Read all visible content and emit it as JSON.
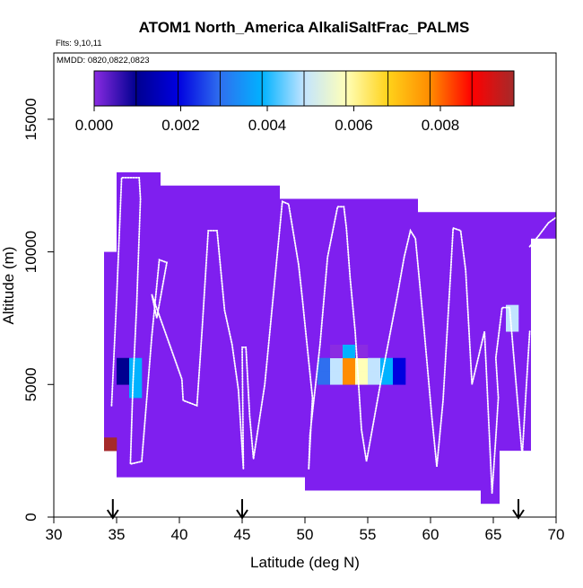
{
  "chart_data": {
    "type": "heatmap",
    "title": "ATOM1 North_America AlkaliSaltFrac_PALMS",
    "flights_label": "Flts: 9,10,11",
    "dates_label": "MMDD: 0820,0822,0823",
    "xlabel": "Latitude (deg N)",
    "ylabel": "Altitude (m)",
    "xlim": [
      30,
      70
    ],
    "ylim": [
      0,
      17500
    ],
    "x_ticks": [
      30,
      35,
      40,
      45,
      50,
      55,
      60,
      65,
      70
    ],
    "y_ticks": [
      0,
      5000,
      10000,
      15000
    ],
    "colorbar": {
      "ticks": [
        "0.000",
        "0.002",
        "0.004",
        "0.006",
        "0.008"
      ],
      "tick_values": [
        0,
        0.002,
        0.004,
        0.006,
        0.008
      ],
      "range": [
        0,
        0.0097
      ],
      "n_segments": 10
    },
    "colors": {
      "base": "#7f1fef",
      "track": "#ffffff",
      "scale": [
        "#8a2be2",
        "#000090",
        "#0000e0",
        "#2f6fef",
        "#00b2ff",
        "#c2e4ff",
        "#ffffb8",
        "#ffd21a",
        "#ff8c00",
        "#ff0000",
        "#a52a2a"
      ]
    },
    "bin_width_deg": 1,
    "bin_height_m": 500,
    "background_bins": [
      {
        "lat": [
          34,
          35
        ],
        "alt": [
          2500,
          10000
        ]
      },
      {
        "lat": [
          35,
          38.5
        ],
        "alt": [
          1500,
          13000
        ]
      },
      {
        "lat": [
          38.5,
          48
        ],
        "alt": [
          1500,
          12500
        ]
      },
      {
        "lat": [
          48,
          50
        ],
        "alt": [
          1500,
          12000
        ]
      },
      {
        "lat": [
          50,
          59
        ],
        "alt": [
          1000,
          12000
        ]
      },
      {
        "lat": [
          59,
          64
        ],
        "alt": [
          1000,
          11500
        ]
      },
      {
        "lat": [
          64,
          65.5
        ],
        "alt": [
          500,
          11500
        ]
      },
      {
        "lat": [
          65.5,
          68
        ],
        "alt": [
          2500,
          11500
        ]
      },
      {
        "lat": [
          68,
          70
        ],
        "alt": [
          10500,
          11500
        ]
      }
    ],
    "value_bins": [
      {
        "lat": 34,
        "alt": 2500,
        "value": 0.0095
      },
      {
        "lat": 35,
        "alt": 5000,
        "value": 0.0012
      },
      {
        "lat": 35,
        "alt": 5500,
        "value": 0.0013
      },
      {
        "lat": 36,
        "alt": 4500,
        "value": 0.0035
      },
      {
        "lat": 36,
        "alt": 5000,
        "value": 0.0035
      },
      {
        "lat": 36,
        "alt": 5500,
        "value": 0.0035
      },
      {
        "lat": 51,
        "alt": 5000,
        "value": 0.0027
      },
      {
        "lat": 51,
        "alt": 5500,
        "value": 0.0027
      },
      {
        "lat": 52,
        "alt": 5000,
        "value": 0.0046
      },
      {
        "lat": 52,
        "alt": 5500,
        "value": 0.0046
      },
      {
        "lat": 52,
        "alt": 6000,
        "value": 0.0001
      },
      {
        "lat": 53,
        "alt": 5000,
        "value": 0.0075
      },
      {
        "lat": 53,
        "alt": 5500,
        "value": 0.0075
      },
      {
        "lat": 53,
        "alt": 6000,
        "value": 0.0035
      },
      {
        "lat": 54,
        "alt": 5000,
        "value": 0.0063
      },
      {
        "lat": 54,
        "alt": 5500,
        "value": 0.0063
      },
      {
        "lat": 54,
        "alt": 6000,
        "value": 0.0001
      },
      {
        "lat": 55,
        "alt": 5000,
        "value": 0.0045
      },
      {
        "lat": 55,
        "alt": 5500,
        "value": 0.0045
      },
      {
        "lat": 56,
        "alt": 5000,
        "value": 0.0035
      },
      {
        "lat": 56,
        "alt": 5500,
        "value": 0.0035
      },
      {
        "lat": 57,
        "alt": 5000,
        "value": 0.0015
      },
      {
        "lat": 57,
        "alt": 5500,
        "value": 0.0015
      },
      {
        "lat": 66,
        "alt": 7000,
        "value": 0.0045
      },
      {
        "lat": 66,
        "alt": 7500,
        "value": 0.0045
      }
    ],
    "flight_track": [
      [
        34.6,
        4200
      ],
      [
        35.0,
        8200
      ],
      [
        35.4,
        12800
      ],
      [
        36.8,
        12800
      ],
      [
        36.9,
        12000
      ],
      [
        36.6,
        8000
      ],
      [
        36.3,
        5000
      ],
      [
        36.1,
        2000
      ],
      [
        37.0,
        2100
      ],
      [
        37.8,
        6800
      ],
      [
        38.4,
        9700
      ],
      [
        39.0,
        9600
      ],
      [
        38.2,
        7500
      ],
      [
        37.8,
        8400
      ],
      [
        40.2,
        5200
      ],
      [
        40.3,
        4400
      ],
      [
        41.4,
        4200
      ],
      [
        41.8,
        7000
      ],
      [
        42.3,
        10800
      ],
      [
        43.0,
        10800
      ],
      [
        43.6,
        7800
      ],
      [
        44.2,
        6500
      ],
      [
        44.7,
        4800
      ],
      [
        45.1,
        1800
      ],
      [
        45.0,
        6400
      ],
      [
        45.3,
        6400
      ],
      [
        45.6,
        3800
      ],
      [
        45.9,
        2200
      ],
      [
        46.8,
        5000
      ],
      [
        48.2,
        11900
      ],
      [
        48.7,
        11800
      ],
      [
        49.5,
        9500
      ],
      [
        49.8,
        8200
      ],
      [
        50.1,
        6800
      ],
      [
        50.6,
        4500
      ],
      [
        50.3,
        1800
      ],
      [
        50.4,
        3100
      ],
      [
        51.2,
        6500
      ],
      [
        51.8,
        9800
      ],
      [
        52.6,
        11700
      ],
      [
        53.1,
        11700
      ],
      [
        53.3,
        10900
      ],
      [
        53.6,
        9000
      ],
      [
        54.0,
        7000
      ],
      [
        54.5,
        3300
      ],
      [
        54.9,
        2100
      ],
      [
        56.0,
        5000
      ],
      [
        57.3,
        8200
      ],
      [
        57.9,
        9800
      ],
      [
        58.4,
        10800
      ],
      [
        58.8,
        10500
      ],
      [
        59.5,
        7000
      ],
      [
        60.1,
        3800
      ],
      [
        60.5,
        1900
      ],
      [
        61.0,
        4400
      ],
      [
        61.6,
        9200
      ],
      [
        61.8,
        10900
      ],
      [
        62.4,
        10800
      ],
      [
        62.8,
        9300
      ],
      [
        63.3,
        5000
      ],
      [
        64.3,
        7000
      ],
      [
        64.9,
        900
      ],
      [
        65.2,
        3000
      ],
      [
        65.4,
        4500
      ],
      [
        65.2,
        6000
      ],
      [
        65.7,
        7900
      ],
      [
        66.3,
        7900
      ],
      [
        67.3,
        2300
      ],
      [
        67.6,
        4700
      ],
      [
        67.9,
        7000
      ]
    ],
    "flight_track_extra": [
      [
        67.9,
        10200
      ],
      [
        68.6,
        10600
      ],
      [
        69.4,
        11100
      ],
      [
        70.0,
        11300
      ]
    ],
    "arrow_latitudes": [
      34.7,
      45.0,
      67.0
    ]
  }
}
